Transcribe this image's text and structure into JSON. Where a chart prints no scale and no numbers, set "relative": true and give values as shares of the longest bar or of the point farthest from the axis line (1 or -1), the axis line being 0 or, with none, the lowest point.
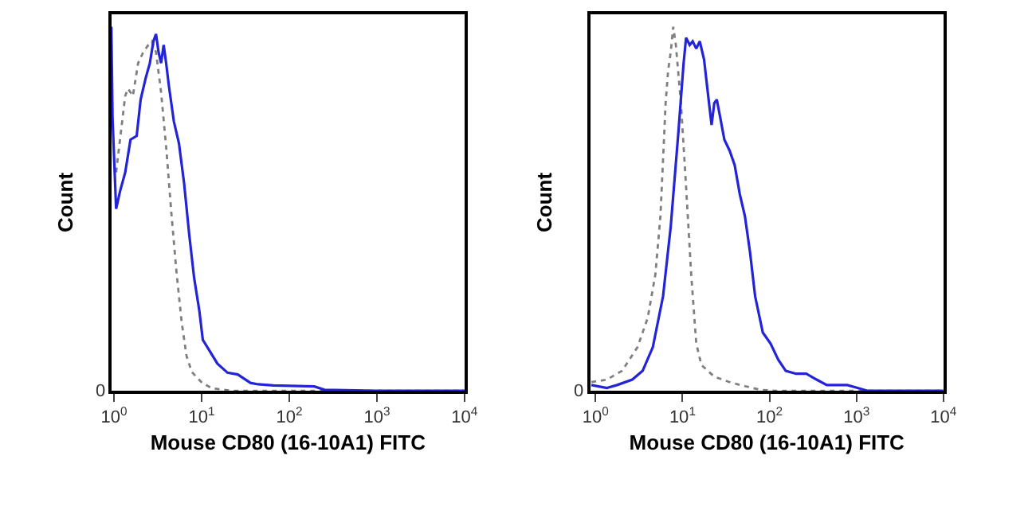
{
  "chart_data": [
    {
      "type": "line",
      "relative": true,
      "xlabel": "Mouse CD80 (16-10A1) FITC",
      "ylabel": "Count",
      "log": "x",
      "xlim": [
        0.93,
        10000
      ],
      "xticks": [
        {
          "value": 1,
          "label": "10$^{0}$"
        },
        {
          "value": 10,
          "label": "10$^{1}$"
        },
        {
          "value": 100,
          "label": "10$^{2}$"
        },
        {
          "value": 1000,
          "label": "10$^{3}$"
        },
        {
          "value": 10000,
          "label": "10$^{4}$"
        }
      ],
      "annotations": [
        "0"
      ],
      "marker": "none",
      "series": [
        {
          "color": "#7f7f7f",
          "line_style": "dotted",
          "x": [
            1.055,
            1.34,
            1.44,
            1.64,
            1.88,
            2.15,
            2.46,
            2.7,
            3.01,
            3.44,
            3.93,
            4.5,
            5.14,
            5.9,
            6.7,
            7.7,
            10.1,
            13.2,
            22.5,
            10000
          ],
          "values": [
            0.6,
            0.81,
            0.83,
            0.81,
            0.9,
            0.93,
            0.95,
            0.96,
            0.93,
            0.82,
            0.67,
            0.49,
            0.33,
            0.19,
            0.097,
            0.052,
            0.022,
            0.007,
            0,
            0
          ]
        },
        {
          "color": "#2323d8",
          "line_style": "solid",
          "x": [
            0.93,
            0.96,
            1.055,
            1.175,
            1.34,
            1.54,
            1.81,
            2.01,
            2.3,
            2.56,
            2.81,
            3.01,
            3.22,
            3.44,
            3.68,
            3.93,
            4.21,
            4.81,
            5.5,
            6.3,
            7.2,
            8.2,
            9.4,
            10.3,
            12.3,
            15.1,
            19.7,
            25.8,
            36,
            44,
            66,
            193,
            252,
            967,
            10000
          ],
          "values": [
            1,
            0.75,
            0.5,
            0.55,
            0.6,
            0.69,
            0.7,
            0.8,
            0.86,
            0.9,
            0.96,
            0.98,
            0.93,
            0.9,
            0.95,
            0.9,
            0.84,
            0.74,
            0.68,
            0.57,
            0.43,
            0.31,
            0.22,
            0.14,
            0.11,
            0.075,
            0.05,
            0.045,
            0.022,
            0.018,
            0.015,
            0.012,
            0.003,
            0,
            0
          ]
        }
      ]
    },
    {
      "type": "line",
      "relative": true,
      "xlabel": "Mouse CD80 (16-10A1) FITC",
      "ylabel": "Count",
      "log": "x",
      "xlim": [
        0.87,
        10000
      ],
      "xticks": [
        {
          "value": 1,
          "label": "10$^{0}$"
        },
        {
          "value": 10,
          "label": "10$^{1}$"
        },
        {
          "value": 100,
          "label": "10$^{2}$"
        },
        {
          "value": 1000,
          "label": "10$^{3}$"
        },
        {
          "value": 10000,
          "label": "10$^{4}$"
        }
      ],
      "annotations": [
        "0"
      ],
      "marker": "none",
      "series": [
        {
          "color": "#7f7f7f",
          "line_style": "dotted",
          "x": [
            0.897,
            1.35,
            2.02,
            3.04,
            3.98,
            4.88,
            5.58,
            6.4,
            6.84,
            7.32,
            7.83,
            8.39,
            9.6,
            11.0,
            12.6,
            14.4,
            16.5,
            23.2,
            34.8,
            52.2,
            78.3,
            118,
            10000
          ],
          "values": [
            0.024,
            0.031,
            0.055,
            0.12,
            0.2,
            0.32,
            0.48,
            0.79,
            0.88,
            0.93,
            1.0,
            0.95,
            0.79,
            0.56,
            0.32,
            0.13,
            0.071,
            0.039,
            0.024,
            0.013,
            0.003,
            0,
            0
          ]
        },
        {
          "color": "#2323d8",
          "line_style": "solid",
          "x": [
            0.897,
            1.35,
            1.77,
            2.65,
            3.48,
            4.56,
            5.98,
            7.32,
            8.97,
            10.3,
            11.0,
            12.1,
            13.1,
            14.4,
            15.8,
            17.7,
            20.2,
            21.6,
            23.2,
            24.8,
            27.2,
            30.3,
            34.8,
            39.8,
            45.6,
            52.2,
            59.8,
            68.4,
            83.9,
            103,
            126,
            154,
            202,
            265,
            348,
            456,
            784,
            1030,
            1350,
            10000
          ],
          "values": [
            0.016,
            0.008,
            0.016,
            0.031,
            0.055,
            0.12,
            0.26,
            0.45,
            0.71,
            0.9,
            0.97,
            0.95,
            0.96,
            0.94,
            0.96,
            0.91,
            0.79,
            0.73,
            0.79,
            0.8,
            0.75,
            0.69,
            0.66,
            0.62,
            0.54,
            0.48,
            0.38,
            0.26,
            0.16,
            0.13,
            0.086,
            0.055,
            0.047,
            0.047,
            0.031,
            0.016,
            0.016,
            0.008,
            0,
            0
          ]
        }
      ]
    }
  ]
}
